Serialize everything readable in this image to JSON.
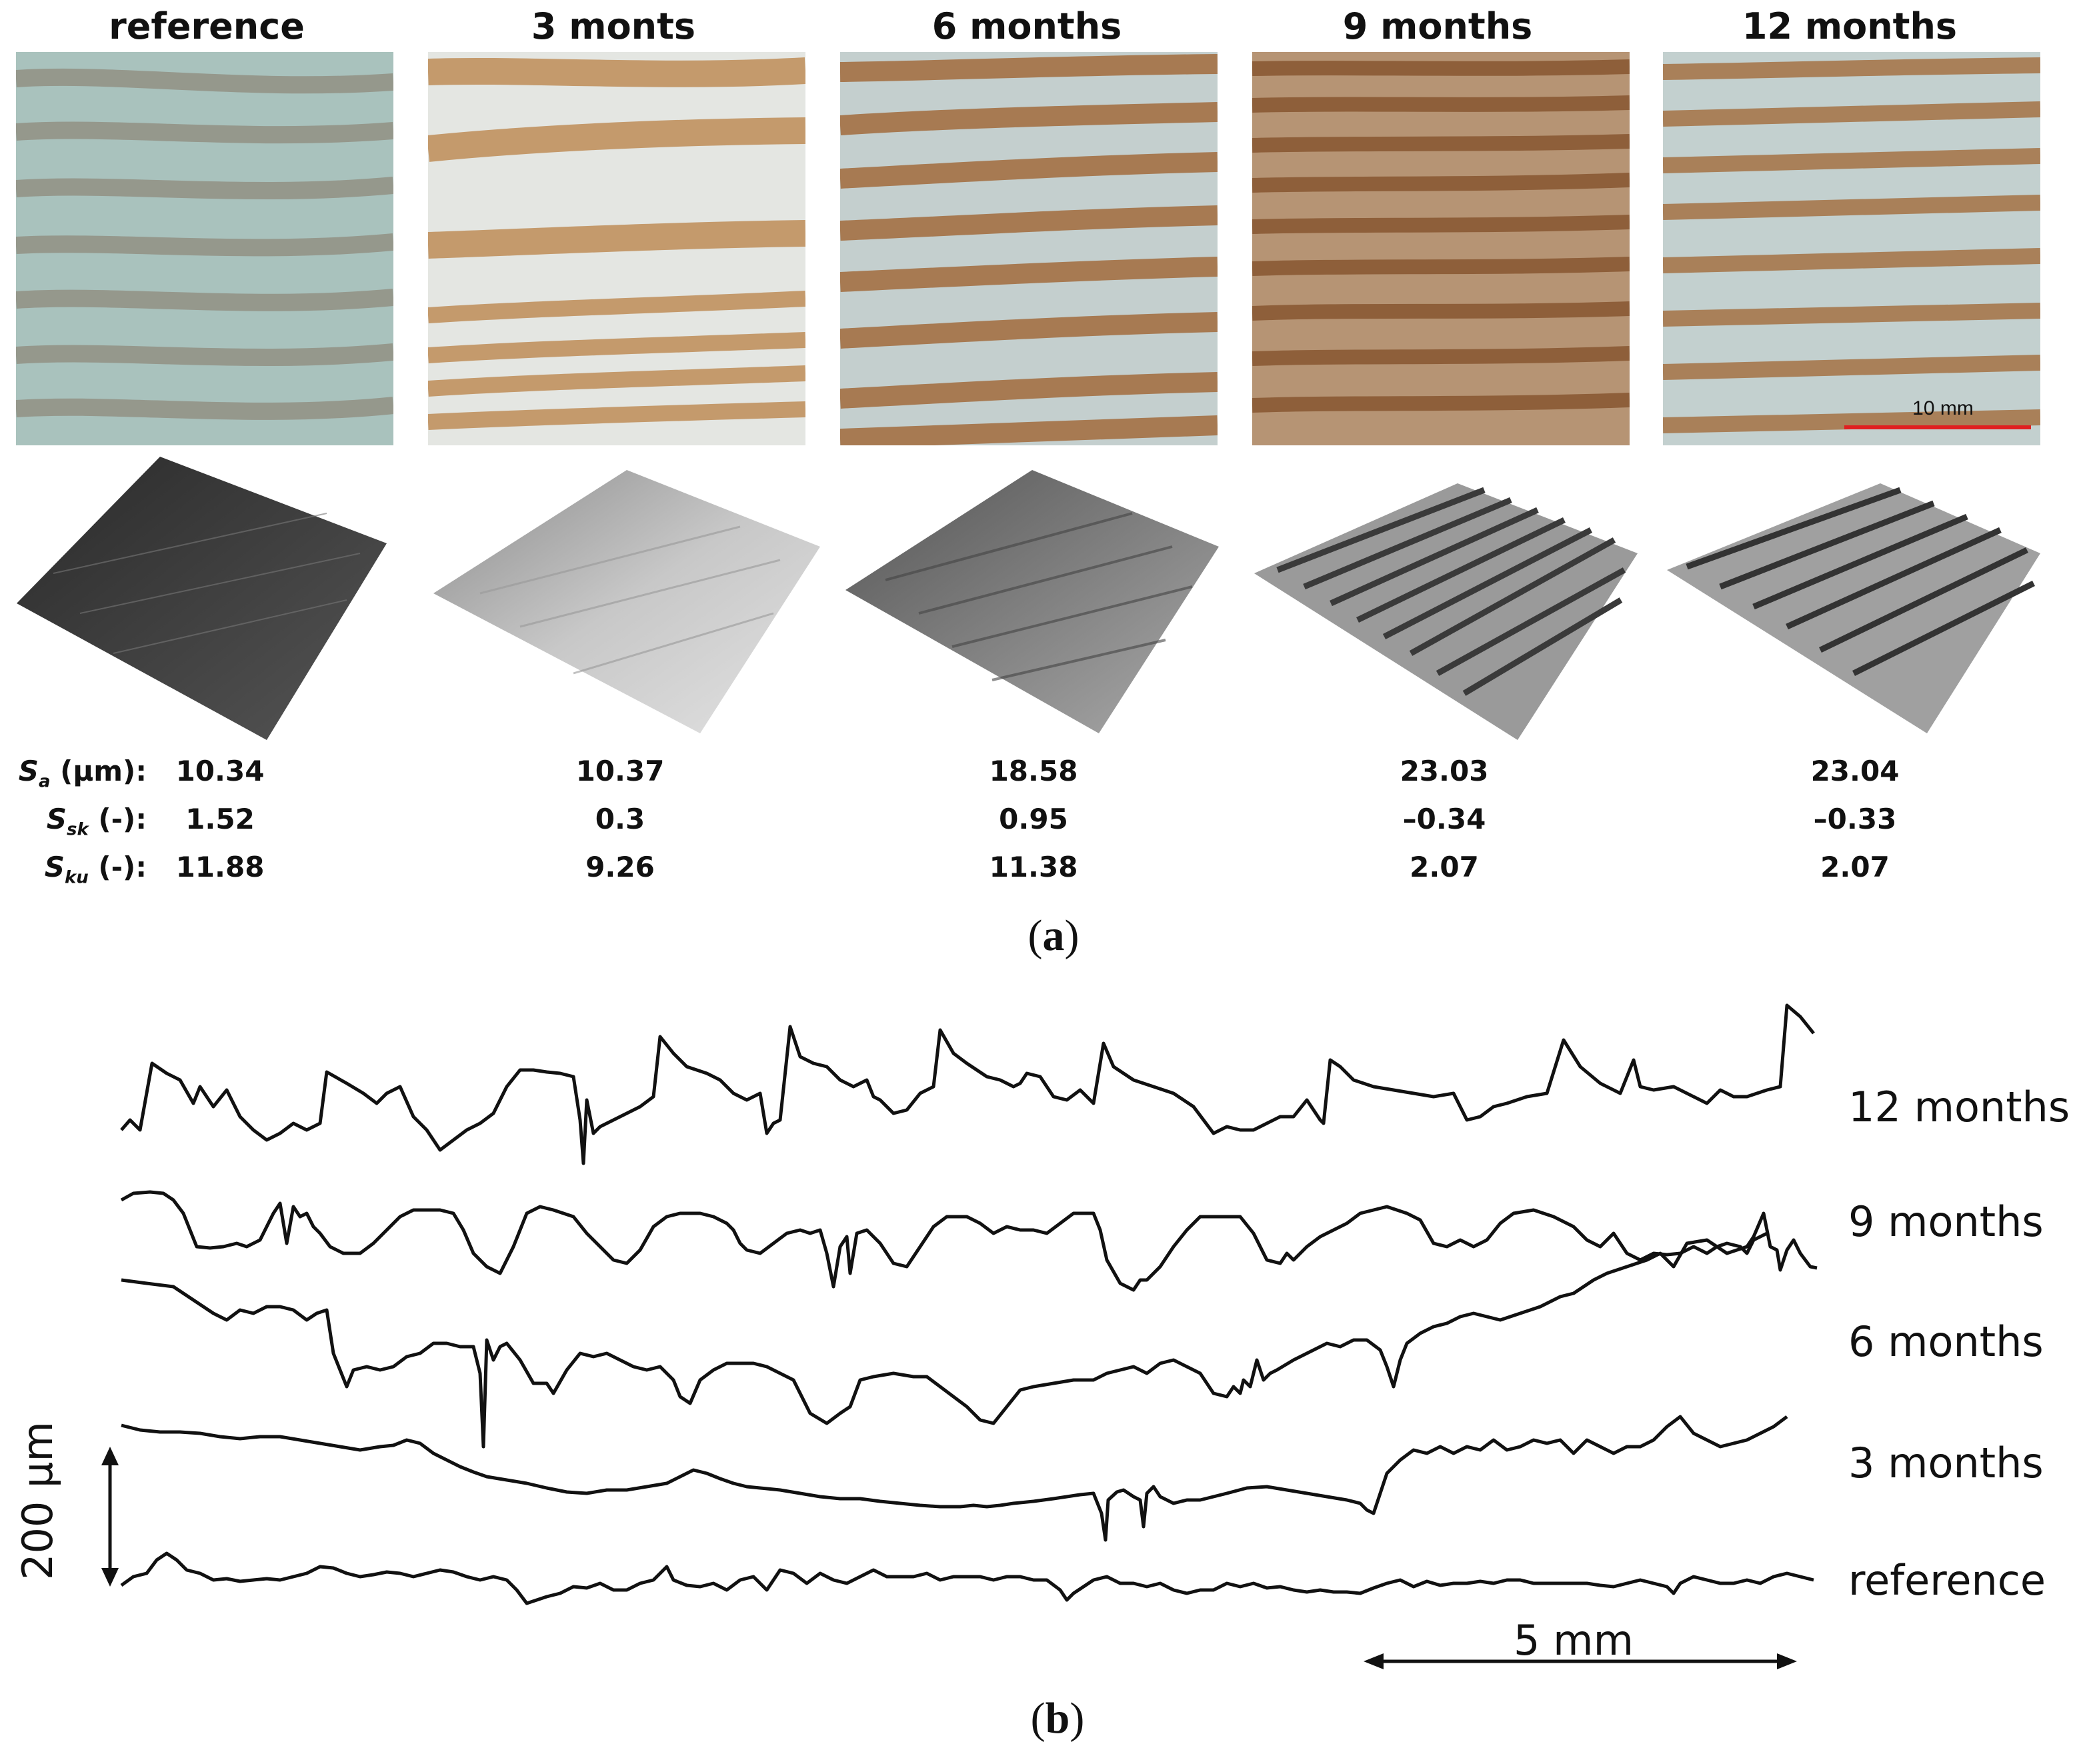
{
  "panel_a": {
    "label_open": "(",
    "label_letter": "a",
    "label_close": ")",
    "columns": [
      {
        "title": "reference",
        "sa": "10.34",
        "ssk": "1.52",
        "sku": "11.88"
      },
      {
        "title": "3 monts",
        "sa": "10.37",
        "ssk": "0.3",
        "sku": "9.26"
      },
      {
        "title": "6 months",
        "sa": "18.58",
        "ssk": "0.95",
        "sku": "11.38"
      },
      {
        "title": "9 months",
        "sa": "23.03",
        "ssk": "–0.34",
        "sku": "2.07"
      },
      {
        "title": "12 months",
        "sa": "23.04",
        "ssk": "–0.33",
        "sku": "2.07"
      }
    ],
    "row_labels": {
      "sa_symbol": "S",
      "sa_sub": "a",
      "sa_unit": " (µm):",
      "ssk_symbol": "S",
      "ssk_sub": "sk",
      "ssk_unit": " (-):",
      "sku_symbol": "S",
      "sku_sub": "ku",
      "sku_unit": " (-):"
    },
    "scale_bar_label": "10 mm",
    "colors": {
      "scale_bar": "#e02020",
      "earlywood": "#d8dcd6",
      "latewood": "#b08a62"
    }
  },
  "panel_b": {
    "label_open": "(",
    "label_letter": "b",
    "label_close": ")",
    "profile_labels": [
      "12 months",
      "9 months",
      "6 months",
      "3 months",
      "reference"
    ],
    "vertical_scale": "200 µm",
    "horizontal_scale": "5 mm"
  }
}
